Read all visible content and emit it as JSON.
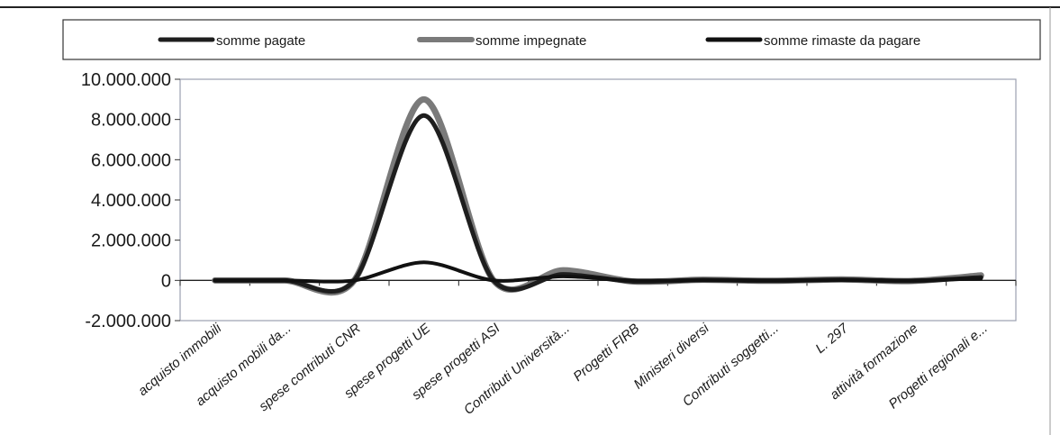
{
  "chart_data": {
    "type": "line",
    "categories": [
      "acquisto immobili",
      "acquisto mobili da...",
      "spese contributi CNR",
      "spese progetti UE",
      "spese progetti ASI",
      "Contributi Università...",
      "Progetti FIRB",
      "Ministeri diversi",
      "Contributi soggetti...",
      "L. 297",
      "attività formazione",
      "Progetti regionali e..."
    ],
    "series": [
      {
        "name": "somme pagate",
        "color": "#1e1e1e",
        "values": [
          0,
          0,
          0,
          8200000,
          0,
          300000,
          -50000,
          20000,
          -20000,
          30000,
          -30000,
          150000
        ]
      },
      {
        "name": "somme impegnate",
        "color": "#7a7a7a",
        "values": [
          0,
          0,
          0,
          9000000,
          0,
          500000,
          -50000,
          30000,
          -20000,
          50000,
          -30000,
          250000
        ]
      },
      {
        "name": "somme rimaste da pagare",
        "color": "#111111",
        "values": [
          0,
          0,
          0,
          900000,
          0,
          200000,
          0,
          10000,
          0,
          20000,
          0,
          100000
        ]
      }
    ],
    "yticks": [
      "10.000.000",
      "8.000.000",
      "6.000.000",
      "4.000.000",
      "2.000.000",
      "0",
      "-2.000.000"
    ],
    "ylim": [
      -2000000,
      10000000
    ],
    "grid": false,
    "legend_position": "top"
  }
}
